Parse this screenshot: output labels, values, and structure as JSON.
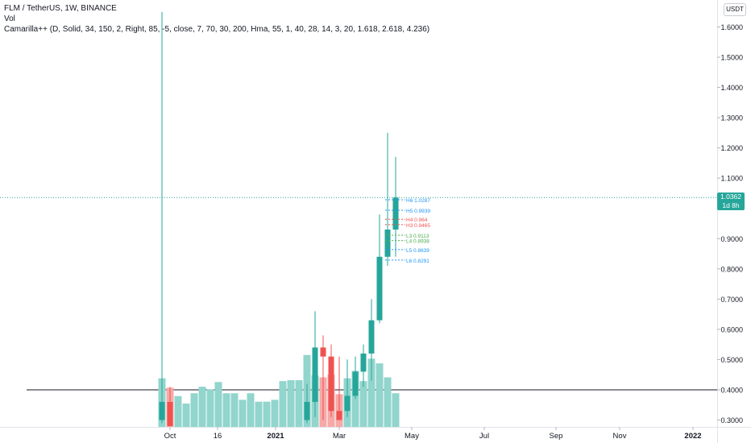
{
  "header": {
    "symbol_line": "FLM / TetherUS, 1W, BINANCE",
    "volume_line": "Vol",
    "indicator_line": "Camarilla++ (D, Solid, 34, 150, 2, Right, 85, -5, close, 7, 70, 30, 200, Hma, 55, 1, 40, 28, 14, 3, 20, 1.618, 2.618, 4.236)"
  },
  "currency_button": "USDT",
  "last_price": {
    "value": "1.0362",
    "countdown": "1d 8h"
  },
  "colors": {
    "up": "#26a69a",
    "down": "#ef5350",
    "vol_up": "#91d5cd",
    "vol_down": "#f6a9a7",
    "h_level": "#2196f3",
    "l_level": "#4caf50"
  },
  "chart_data": {
    "type": "candlestick",
    "x_ticks": [
      "Oct",
      "16",
      "2021",
      "Mar",
      "May",
      "Jul",
      "Sep",
      "Nov",
      "2022"
    ],
    "y_ticks": [
      "1.6000",
      "1.5000",
      "1.4000",
      "1.3000",
      "1.2000",
      "1.1000",
      "0.9000",
      "0.8000",
      "0.7000",
      "0.6000",
      "0.5000",
      "0.4000",
      "0.3000"
    ],
    "ylim": [
      0.28,
      1.65
    ],
    "horizontal_line": 0.4,
    "candles": [
      {
        "o": 0.3,
        "h": 1.65,
        "l": 0.29,
        "c": 0.36
      },
      {
        "o": 0.36,
        "h": 0.41,
        "l": 0.28,
        "c": 0.28
      },
      {
        "o": 0.28,
        "h": 0.28,
        "l": 0.28,
        "c": 0.28
      },
      {
        "o": 0.28,
        "h": 0.28,
        "l": 0.28,
        "c": 0.28
      },
      {
        "o": 0.28,
        "h": 0.28,
        "l": 0.28,
        "c": 0.28
      },
      {
        "o": 0.28,
        "h": 0.28,
        "l": 0.28,
        "c": 0.28
      },
      {
        "o": 0.28,
        "h": 0.28,
        "l": 0.28,
        "c": 0.28
      },
      {
        "o": 0.28,
        "h": 0.28,
        "l": 0.28,
        "c": 0.28
      },
      {
        "o": 0.28,
        "h": 0.28,
        "l": 0.28,
        "c": 0.28
      },
      {
        "o": 0.28,
        "h": 0.28,
        "l": 0.28,
        "c": 0.28
      },
      {
        "o": 0.28,
        "h": 0.28,
        "l": 0.28,
        "c": 0.28
      },
      {
        "o": 0.28,
        "h": 0.28,
        "l": 0.28,
        "c": 0.28
      },
      {
        "o": 0.28,
        "h": 0.28,
        "l": 0.28,
        "c": 0.28
      },
      {
        "o": 0.28,
        "h": 0.28,
        "l": 0.28,
        "c": 0.28
      },
      {
        "o": 0.28,
        "h": 0.28,
        "l": 0.28,
        "c": 0.28
      },
      {
        "o": 0.28,
        "h": 0.28,
        "l": 0.28,
        "c": 0.28
      },
      {
        "o": 0.28,
        "h": 0.28,
        "l": 0.28,
        "c": 0.28
      },
      {
        "o": 0.28,
        "h": 0.28,
        "l": 0.28,
        "c": 0.28
      },
      {
        "o": 0.3,
        "h": 0.42,
        "l": 0.29,
        "c": 0.36
      },
      {
        "o": 0.36,
        "h": 0.66,
        "l": 0.31,
        "c": 0.54
      },
      {
        "o": 0.54,
        "h": 0.58,
        "l": 0.3,
        "c": 0.51
      },
      {
        "o": 0.51,
        "h": 0.55,
        "l": 0.31,
        "c": 0.33
      },
      {
        "o": 0.33,
        "h": 0.51,
        "l": 0.31,
        "c": 0.3
      },
      {
        "o": 0.33,
        "h": 0.5,
        "l": 0.31,
        "c": 0.38
      },
      {
        "o": 0.38,
        "h": 0.51,
        "l": 0.37,
        "c": 0.46
      },
      {
        "o": 0.46,
        "h": 0.55,
        "l": 0.41,
        "c": 0.52
      },
      {
        "o": 0.52,
        "h": 0.7,
        "l": 0.43,
        "c": 0.63
      },
      {
        "o": 0.63,
        "h": 0.98,
        "l": 0.62,
        "c": 0.84
      },
      {
        "o": 0.84,
        "h": 1.25,
        "l": 0.81,
        "c": 0.93
      },
      {
        "o": 0.93,
        "h": 1.17,
        "l": 0.84,
        "c": 1.036
      }
    ],
    "volume_scale_max": 1,
    "volume": [
      0.52,
      0.42,
      0.33,
      0.25,
      0.36,
      0.43,
      0.4,
      0.48,
      0.36,
      0.36,
      0.29,
      0.36,
      0.27,
      0.27,
      0.29,
      0.49,
      0.5,
      0.5,
      0.77,
      0.55,
      0.53,
      0.56,
      0.35,
      0.52,
      0.6,
      0.49,
      0.73,
      0.68,
      0.53,
      0.36
    ],
    "pivot_levels": [
      {
        "label": "H6",
        "value": "1.0287",
        "v": 1.0287,
        "kind": "h"
      },
      {
        "label": "H5",
        "value": "0.9939",
        "v": 0.9939,
        "kind": "h"
      },
      {
        "label": "H4",
        "value": "0.964",
        "v": 0.964,
        "kind": "h4"
      },
      {
        "label": "H3",
        "value": "0.9465",
        "v": 0.9465,
        "kind": "h3"
      },
      {
        "label": "L3",
        "value": "0.9113",
        "v": 0.9113,
        "kind": "l"
      },
      {
        "label": "L4",
        "value": "0.8938",
        "v": 0.8938,
        "kind": "l"
      },
      {
        "label": "L5",
        "value": "0.8639",
        "v": 0.8639,
        "kind": "h"
      },
      {
        "label": "L6",
        "value": "0.8291",
        "v": 0.8291,
        "kind": "h"
      }
    ]
  }
}
